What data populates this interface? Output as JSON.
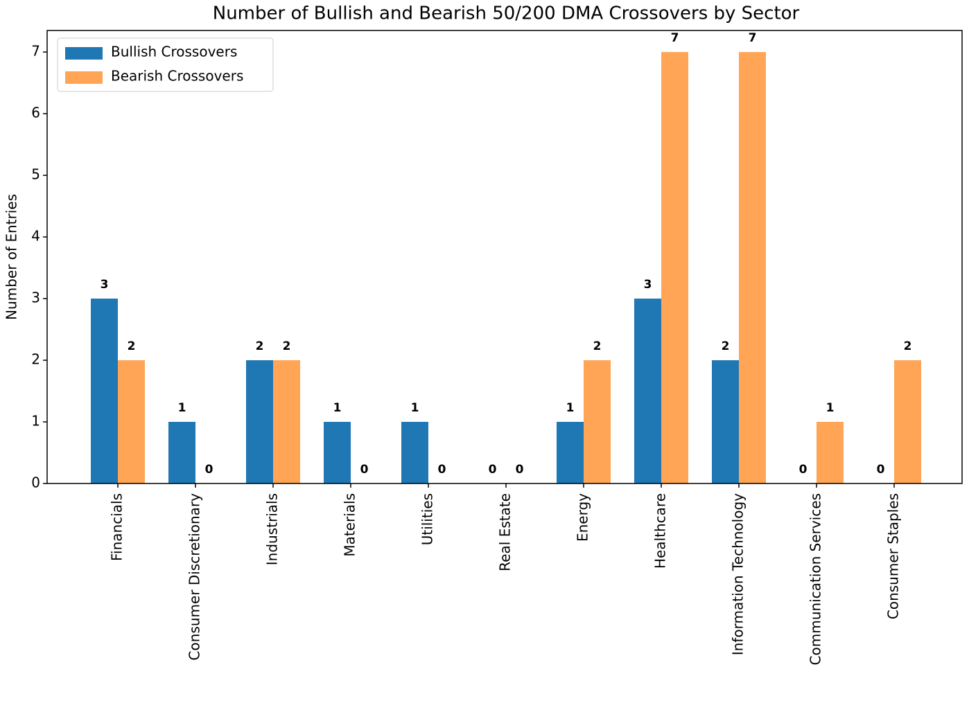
{
  "chart_data": {
    "type": "bar",
    "title": "Number of Bullish and Bearish 50/200 DMA Crossovers by Sector",
    "y_label": "Number of Entries",
    "categories": [
      "Financials",
      "Consumer Discretionary",
      "Industrials",
      "Materials",
      "Utilities",
      "Real Estate",
      "Energy",
      "Healthcare",
      "Information Technology",
      "Communication Services",
      "Consumer Staples"
    ],
    "series": [
      {
        "name": "Bullish Crossovers",
        "color": "#1f77b4",
        "values": [
          3,
          1,
          2,
          1,
          1,
          0,
          1,
          3,
          2,
          0,
          0
        ]
      },
      {
        "name": "Bearish Crossovers",
        "color": "#ffa555",
        "values": [
          2,
          0,
          2,
          0,
          0,
          0,
          2,
          7,
          7,
          1,
          2
        ]
      }
    ],
    "ylim": [
      0,
      7.35
    ],
    "yticks": [
      0,
      1,
      2,
      3,
      4,
      5,
      6,
      7
    ],
    "legend": "upper left"
  }
}
